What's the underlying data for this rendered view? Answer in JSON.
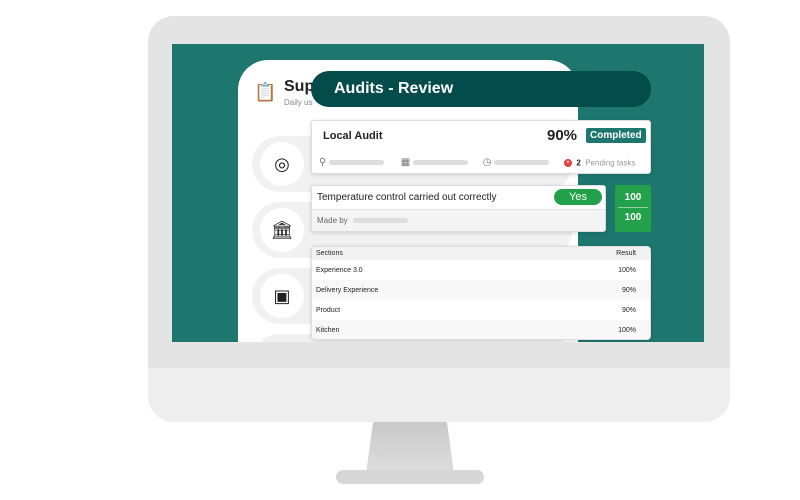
{
  "panel": {
    "title": "Sup",
    "subtitle": "Daily us"
  },
  "header": {
    "title": "Audits - Review"
  },
  "audit": {
    "name": "Local Audit",
    "score": "90%",
    "status": "Completed",
    "pending_count": "2",
    "pending_label": "Pending tasks"
  },
  "question": {
    "text": "Temperature control carried out correctly",
    "answer": "Yes",
    "made_by_label": "Made by"
  },
  "score_box": {
    "score": "100",
    "max": "100"
  },
  "table": {
    "headers": [
      "Sections",
      "Result"
    ],
    "rows": [
      [
        "Experience 3.0",
        "100%"
      ],
      [
        "Delivery Experience",
        "90%"
      ],
      [
        "Product",
        "90%"
      ],
      [
        "Kitchen",
        "100%"
      ]
    ]
  },
  "colors": {
    "teal": "#1d776e",
    "header": "#044b4b",
    "completed": "#1d776e",
    "yes": "#22a04a",
    "error": "#e04040"
  }
}
